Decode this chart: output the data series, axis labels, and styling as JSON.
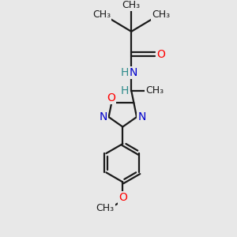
{
  "background_color": "#e8e8e8",
  "bond_color": "#1a1a1a",
  "atom_colors": {
    "N": "#0000cc",
    "O": "#ff0000",
    "C": "#1a1a1a",
    "H": "#2e8b8b"
  },
  "figsize": [
    3.0,
    3.0
  ],
  "dpi": 100,
  "xlim": [
    0,
    10
  ],
  "ylim": [
    0,
    10
  ]
}
